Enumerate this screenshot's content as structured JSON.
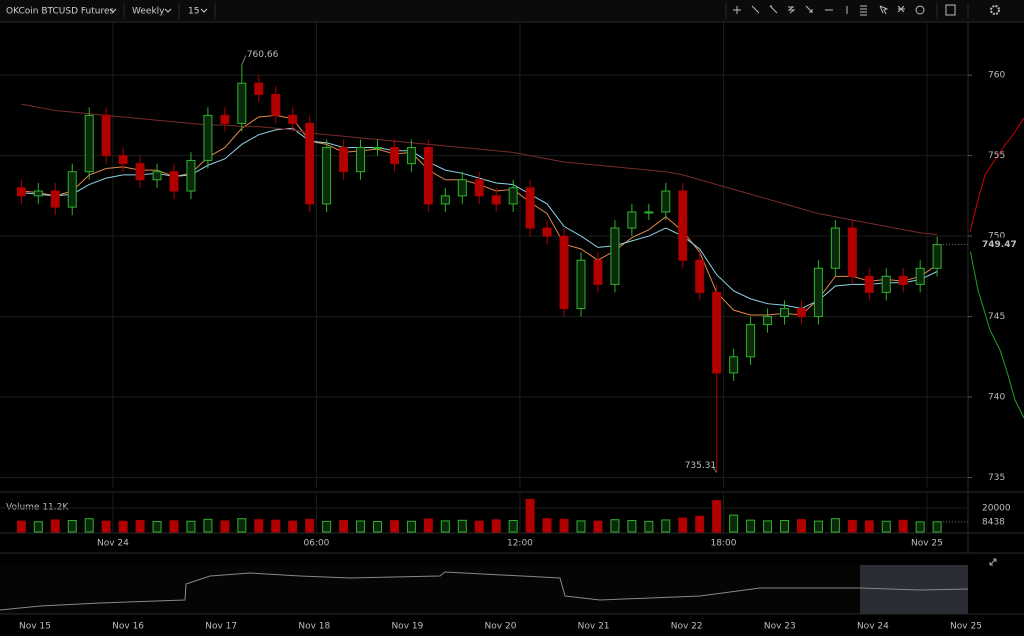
{
  "toolbar": {
    "symbol": "OKCoin BTCUSD Futures",
    "range": "Weekly",
    "interval": "15"
  },
  "chart_data": {
    "type": "candlestick",
    "x": [
      -2.7,
      -2.2,
      -1.7,
      -1.2,
      -0.7,
      -0.2,
      0.3,
      0.8,
      1.3,
      1.8,
      2.3,
      2.8,
      3.3,
      3.8,
      4.3,
      4.8,
      5.3,
      5.8,
      6.3,
      6.8,
      7.3,
      7.8,
      8.3,
      8.8,
      9.3,
      9.8,
      10.3,
      10.8,
      11.3,
      11.8,
      12.3,
      12.8,
      13.3,
      13.8,
      14.3,
      14.8,
      15.3,
      15.8,
      16.3,
      16.8,
      17.3,
      17.8,
      18.3,
      18.8,
      19.3,
      19.8,
      20.3,
      20.8,
      21.3,
      21.8,
      22.3,
      22.8,
      23.3,
      23.8,
      24.3
    ],
    "open": [
      753,
      752.5,
      752.8,
      751.8,
      754,
      757.5,
      755,
      754.5,
      753.5,
      754,
      752.8,
      754.7,
      757.5,
      757,
      759.5,
      758.8,
      757.5,
      757,
      752,
      755.5,
      754,
      755.5,
      755.5,
      754.5,
      755.5,
      752,
      752.5,
      753.5,
      752.5,
      752,
      753,
      750.5,
      750,
      745.5,
      748.5,
      747,
      750.5,
      751.5,
      751.5,
      752.8,
      748.5,
      746.5,
      741.5,
      742.5,
      744.5,
      745,
      745.5,
      745,
      748,
      750.5,
      747.5,
      746.5,
      747.5,
      747,
      748
    ],
    "high": [
      753.5,
      753.3,
      753.3,
      754.5,
      758,
      758,
      755.5,
      755,
      754.5,
      754.5,
      755.2,
      758,
      758,
      760.66,
      760,
      759.3,
      758,
      757.5,
      756,
      756,
      756,
      756,
      756,
      756,
      756,
      753,
      754,
      754,
      753,
      753.5,
      753.5,
      751,
      750.5,
      749,
      749,
      751,
      752,
      752,
      753.3,
      753.3,
      749,
      747,
      743,
      745,
      745.5,
      746,
      746,
      748.5,
      751,
      751,
      748,
      748,
      748,
      748.5,
      749.97
    ],
    "low": [
      752,
      752,
      751.3,
      751.3,
      753.5,
      754.5,
      754,
      753,
      753,
      752.3,
      752.3,
      754.2,
      756.5,
      756.5,
      758.3,
      757,
      756.5,
      751.5,
      751.5,
      753.5,
      753.5,
      755,
      754,
      754,
      751.5,
      751.5,
      752,
      752,
      751.5,
      751.5,
      750,
      749.5,
      745,
      745,
      746.5,
      746.5,
      750,
      751,
      751,
      748,
      746,
      735.31,
      741,
      742,
      744,
      744.5,
      744.5,
      744.5,
      747.5,
      747,
      746,
      746,
      746.5,
      746.5,
      747.5
    ],
    "close": [
      752.5,
      752.8,
      751.8,
      754,
      757.5,
      755,
      754.5,
      753.5,
      754,
      752.8,
      754.7,
      757.5,
      757,
      759.5,
      758.8,
      757.5,
      757,
      752,
      755.5,
      754,
      755.5,
      755.5,
      754.5,
      755.5,
      752,
      752.5,
      753.5,
      752.5,
      752,
      753,
      750.5,
      750,
      745.5,
      748.5,
      747,
      750.5,
      751.5,
      751.5,
      752.8,
      748.5,
      746.5,
      741.5,
      742.5,
      744.5,
      745,
      745.5,
      745,
      748,
      750.5,
      747.5,
      746.5,
      747.5,
      747,
      748,
      749.47
    ],
    "volume": [
      9000,
      8500,
      10000,
      9500,
      11000,
      9000,
      8800,
      9500,
      8700,
      9300,
      8900,
      10500,
      9200,
      11000,
      10200,
      9800,
      9000,
      10500,
      8800,
      9600,
      9100,
      8700,
      9400,
      8900,
      10800,
      9200,
      9700,
      9000,
      10100,
      9500,
      27000,
      11000,
      10500,
      9200,
      9000,
      10200,
      9500,
      8800,
      10000,
      11500,
      13000,
      26000,
      14000,
      9800,
      9200,
      9500,
      10300,
      9000,
      11000,
      9600,
      9200,
      8900,
      9700,
      8400,
      8438
    ],
    "series": [
      {
        "color": "#e0884a",
        "values": [
          752.8,
          752.7,
          752.5,
          752.8,
          753.8,
          754.2,
          754.3,
          754.1,
          754.1,
          753.7,
          753.9,
          754.9,
          755.5,
          756.7,
          757.4,
          757.5,
          757.3,
          755.9,
          755.7,
          755.2,
          755.3,
          755.4,
          755.1,
          755.2,
          754.1,
          753.5,
          753.5,
          753.2,
          752.8,
          752.9,
          752.1,
          751.4,
          749.5,
          749.2,
          748.5,
          749.1,
          749.9,
          750.4,
          751.2,
          750.3,
          749.0,
          746.5,
          745.4,
          745.1,
          745.1,
          745.2,
          745.1,
          746.1,
          747.5,
          747.5,
          747.2,
          747.3,
          747.2,
          747.5,
          748.2
        ]
      },
      {
        "color": "#8fd3e8",
        "values": [
          752.7,
          752.6,
          752.5,
          752.6,
          753.2,
          753.6,
          753.8,
          753.8,
          753.9,
          753.7,
          753.8,
          754.4,
          754.8,
          755.7,
          756.3,
          756.6,
          756.7,
          755.9,
          755.8,
          755.5,
          755.5,
          755.5,
          755.3,
          755.3,
          754.6,
          754.1,
          753.9,
          753.6,
          753.3,
          753.2,
          752.6,
          752.0,
          750.6,
          750.0,
          749.3,
          749.4,
          749.7,
          750.0,
          750.5,
          750.0,
          749.2,
          747.6,
          746.6,
          746.1,
          745.8,
          745.7,
          745.5,
          746.0,
          746.9,
          747.0,
          747.0,
          747.1,
          747.1,
          747.3,
          747.8
        ]
      },
      {
        "color": "#7a2c2c",
        "values": [
          758.2,
          758.0,
          757.8,
          757.7,
          757.6,
          757.5,
          757.4,
          757.3,
          757.2,
          757.1,
          757.0,
          756.9,
          756.9,
          756.8,
          756.8,
          756.7,
          756.6,
          756.4,
          756.3,
          756.2,
          756.1,
          756.0,
          755.9,
          755.8,
          755.7,
          755.6,
          755.5,
          755.4,
          755.3,
          755.2,
          755.0,
          754.8,
          754.6,
          754.5,
          754.4,
          754.3,
          754.2,
          754.1,
          754.0,
          753.8,
          753.5,
          753.2,
          752.9,
          752.6,
          752.3,
          752.0,
          751.7,
          751.4,
          751.2,
          751.0,
          750.8,
          750.6,
          750.4,
          750.2,
          750.1
        ]
      }
    ],
    "up_color": "#2fb12f",
    "down_color": "#b00000",
    "xlim": [
      -3.33,
      25.21
    ],
    "xticks": [
      {
        "value": 0,
        "label": "Nov 24"
      },
      {
        "value": 6,
        "label": "06:00"
      },
      {
        "value": 12,
        "label": "12:00"
      },
      {
        "value": 18,
        "label": "18:00"
      },
      {
        "value": 24,
        "label": "Nov 25"
      }
    ],
    "ylim": [
      734.35,
      763.3
    ],
    "yticks": [
      735,
      740,
      745,
      750,
      755,
      760
    ],
    "volume_label": "Volume 11.2K",
    "volume_lim": [
      0,
      29000
    ],
    "volume_ticks": [
      20000
    ],
    "grid": true
  },
  "navigator": {
    "labels": [
      "Nov 15",
      "Nov 16",
      "Nov 17",
      "Nov 18",
      "Nov 19",
      "Nov 20",
      "Nov 21",
      "Nov 22",
      "Nov 23",
      "Nov 24",
      "Nov 25"
    ]
  }
}
